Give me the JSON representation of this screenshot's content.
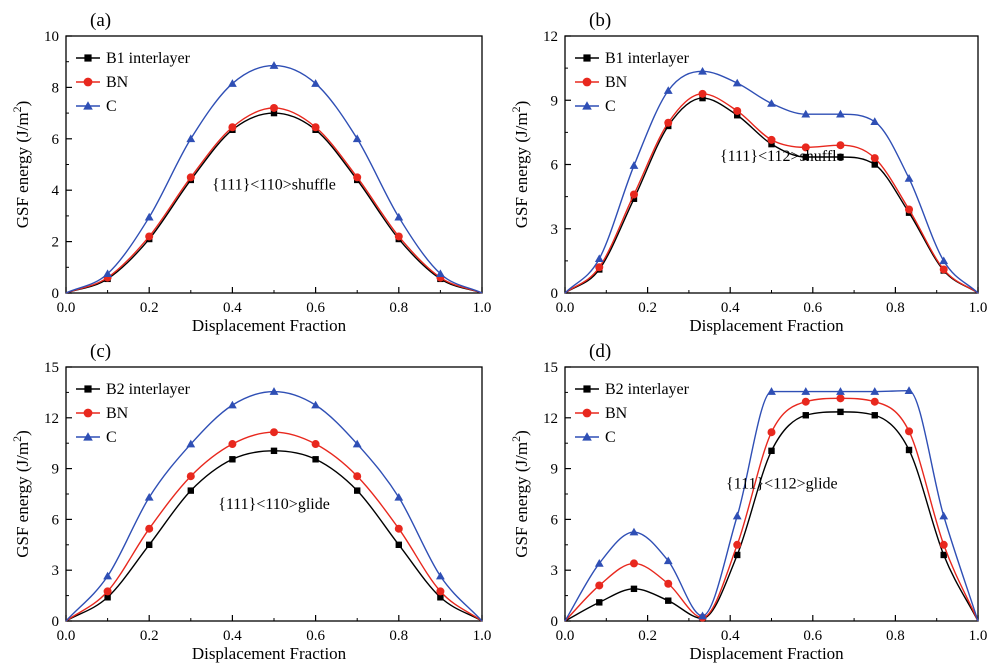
{
  "chart_data": [
    {
      "type": "line",
      "panel_label": "(a)",
      "annotation": "{111}<110>shuffle",
      "xlabel": "Displacement  Fraction",
      "ylabel": "GSF energy (J/m2)",
      "xlim": [
        0.0,
        1.0
      ],
      "ylim": [
        0,
        10
      ],
      "xticks": [
        "0.0",
        "0.2",
        "0.4",
        "0.6",
        "0.8",
        "1.0"
      ],
      "yticks": [
        "0",
        "2",
        "4",
        "6",
        "8",
        "10"
      ],
      "legend_position": "top-left",
      "x": [
        0,
        0.1,
        0.2,
        0.3,
        0.4,
        0.5,
        0.6,
        0.7,
        0.8,
        0.9,
        1.0
      ],
      "series": [
        {
          "name": "B1 interlayer",
          "color": "#000000",
          "marker": "square",
          "values": [
            0,
            0.55,
            2.1,
            4.4,
            6.35,
            7.0,
            6.35,
            4.4,
            2.1,
            0.55,
            0
          ]
        },
        {
          "name": "BN",
          "color": "#e8281e",
          "marker": "circle",
          "values": [
            0,
            0.6,
            2.2,
            4.5,
            6.45,
            7.2,
            6.45,
            4.5,
            2.2,
            0.6,
            0
          ]
        },
        {
          "name": "C",
          "color": "#2f4fb5",
          "marker": "triangle",
          "values": [
            0,
            0.75,
            2.95,
            6.0,
            8.15,
            8.85,
            8.15,
            6.0,
            2.95,
            0.75,
            0
          ]
        }
      ]
    },
    {
      "type": "line",
      "panel_label": "(b)",
      "annotation": "{111}<112>shuffle",
      "xlabel": "Displacement  Fraction",
      "ylabel": "GSF energy (J/m2)",
      "xlim": [
        0.0,
        1.0
      ],
      "ylim": [
        0,
        12
      ],
      "xticks": [
        "0.0",
        "0.2",
        "0.4",
        "0.6",
        "0.8",
        "1.0"
      ],
      "yticks": [
        "0",
        "3",
        "6",
        "9",
        "12"
      ],
      "legend_position": "top-left",
      "x": [
        0,
        0.083,
        0.167,
        0.25,
        0.333,
        0.417,
        0.5,
        0.583,
        0.667,
        0.75,
        0.833,
        0.917,
        1.0
      ],
      "series": [
        {
          "name": "B1 interlayer",
          "color": "#000000",
          "marker": "square",
          "values": [
            0,
            1.1,
            4.4,
            7.8,
            9.1,
            8.3,
            6.95,
            6.35,
            6.35,
            6.0,
            3.75,
            1.05,
            0
          ]
        },
        {
          "name": "BN",
          "color": "#e8281e",
          "marker": "circle",
          "values": [
            0,
            1.2,
            4.6,
            7.95,
            9.3,
            8.5,
            7.15,
            6.8,
            6.9,
            6.3,
            3.9,
            1.1,
            0
          ]
        },
        {
          "name": "C",
          "color": "#2f4fb5",
          "marker": "triangle",
          "values": [
            0,
            1.6,
            5.95,
            9.45,
            10.35,
            9.8,
            8.85,
            8.35,
            8.35,
            8.0,
            5.35,
            1.5,
            0
          ]
        }
      ]
    },
    {
      "type": "line",
      "panel_label": "(c)",
      "annotation": "{111}<110>glide",
      "xlabel": "Displacement  Fraction",
      "ylabel": "GSF energy (J/m2)",
      "xlim": [
        0.0,
        1.0
      ],
      "ylim": [
        0,
        15
      ],
      "xticks": [
        "0.0",
        "0.2",
        "0.4",
        "0.6",
        "0.8",
        "1.0"
      ],
      "yticks": [
        "0",
        "3",
        "6",
        "9",
        "12",
        "15"
      ],
      "legend_position": "top-left",
      "x": [
        0,
        0.1,
        0.2,
        0.3,
        0.4,
        0.5,
        0.6,
        0.7,
        0.8,
        0.9,
        1.0
      ],
      "series": [
        {
          "name": "B2 interlayer",
          "color": "#000000",
          "marker": "square",
          "values": [
            0,
            1.4,
            4.5,
            7.7,
            9.55,
            10.05,
            9.55,
            7.7,
            4.5,
            1.4,
            0
          ]
        },
        {
          "name": "BN",
          "color": "#e8281e",
          "marker": "circle",
          "values": [
            0,
            1.75,
            5.45,
            8.55,
            10.45,
            11.15,
            10.45,
            8.55,
            5.45,
            1.75,
            0
          ]
        },
        {
          "name": "C",
          "color": "#2f4fb5",
          "marker": "triangle",
          "values": [
            0,
            2.65,
            7.3,
            10.45,
            12.75,
            13.55,
            12.75,
            10.45,
            7.3,
            2.65,
            0
          ]
        }
      ]
    },
    {
      "type": "line",
      "panel_label": "(d)",
      "annotation": "{111}<112>glide",
      "xlabel": "Displacement  Fraction",
      "ylabel": "GSF energy (J/m2)",
      "xlim": [
        0.0,
        1.0
      ],
      "ylim": [
        0,
        15
      ],
      "xticks": [
        "0.0",
        "0.2",
        "0.4",
        "0.6",
        "0.8",
        "1.0"
      ],
      "yticks": [
        "0",
        "3",
        "6",
        "9",
        "12",
        "15"
      ],
      "legend_position": "top-left",
      "x": [
        0,
        0.083,
        0.167,
        0.25,
        0.333,
        0.417,
        0.5,
        0.583,
        0.667,
        0.75,
        0.833,
        0.917,
        1.0
      ],
      "series": [
        {
          "name": "B2 interlayer",
          "color": "#000000",
          "marker": "square",
          "values": [
            0,
            1.1,
            1.9,
            1.2,
            0.15,
            3.9,
            10.05,
            12.15,
            12.35,
            12.15,
            10.1,
            3.9,
            0
          ]
        },
        {
          "name": "BN",
          "color": "#e8281e",
          "marker": "circle",
          "values": [
            0,
            2.1,
            3.4,
            2.2,
            0.2,
            4.5,
            11.15,
            12.95,
            13.15,
            12.95,
            11.2,
            4.5,
            0
          ]
        },
        {
          "name": "C",
          "color": "#2f4fb5",
          "marker": "triangle",
          "values": [
            0,
            3.4,
            5.25,
            3.55,
            0.3,
            6.2,
            13.55,
            13.55,
            13.55,
            13.55,
            13.6,
            6.2,
            0
          ]
        }
      ]
    }
  ]
}
